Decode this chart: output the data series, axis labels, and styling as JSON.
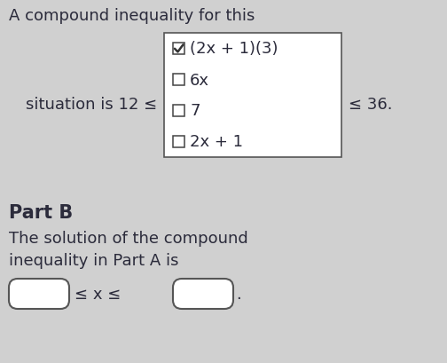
{
  "bg_color": "#d0d0d0",
  "title_line1": "A compound inequality for this",
  "situation_text": "situation is 12 ≤",
  "leq36_text": "≤ 36.",
  "checkbox_options": [
    "(2x + 1)(3)",
    "6x",
    "7",
    "2x + 1"
  ],
  "checked_index": 0,
  "part_b_label": "Part B",
  "part_b_line1": "The solution of the compound",
  "part_b_line2": "inequality in Part A is",
  "answer_text": "≤ x ≤",
  "font_size_main": 13,
  "font_size_partb_label": 14,
  "text_color": "#2b2b3b"
}
